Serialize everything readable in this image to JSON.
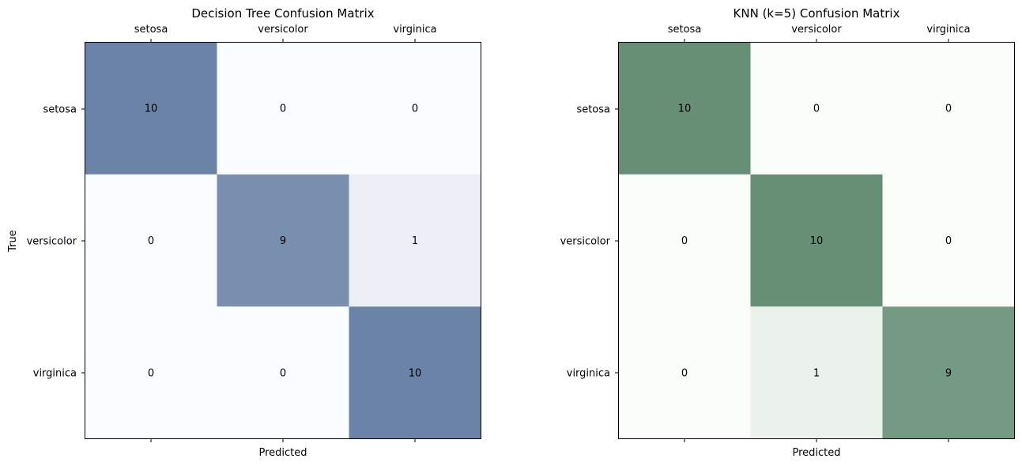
{
  "chart_data": [
    {
      "type": "heatmap",
      "title": "Decision Tree Confusion Matrix",
      "xlabel": "Predicted",
      "ylabel": "True",
      "x_categories": [
        "setosa",
        "versicolor",
        "virginica"
      ],
      "y_categories": [
        "setosa",
        "versicolor",
        "virginica"
      ],
      "values": [
        [
          10,
          0,
          0
        ],
        [
          0,
          9,
          1
        ],
        [
          0,
          0,
          10
        ]
      ],
      "x_tick_position": "top",
      "grid": false,
      "colormap": "Blues",
      "colors": {
        "low": "#f7fbff",
        "high": "#08306b"
      },
      "alpha": 0.6,
      "value_range": [
        0,
        10
      ]
    },
    {
      "type": "heatmap",
      "title": "KNN (k=5) Confusion Matrix",
      "xlabel": "Predicted",
      "ylabel": "",
      "x_categories": [
        "setosa",
        "versicolor",
        "virginica"
      ],
      "y_categories": [
        "setosa",
        "versicolor",
        "virginica"
      ],
      "values": [
        [
          10,
          0,
          0
        ],
        [
          0,
          10,
          0
        ],
        [
          0,
          1,
          9
        ]
      ],
      "x_tick_position": "top",
      "grid": false,
      "colormap": "Greens",
      "colors": {
        "low": "#f7fcf5",
        "high": "#00441b"
      },
      "alpha": 0.6,
      "value_range": [
        0,
        10
      ]
    }
  ]
}
